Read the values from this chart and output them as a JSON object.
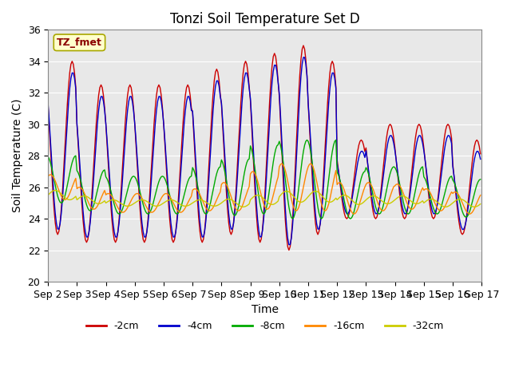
{
  "title": "Tonzi Soil Temperature Set D",
  "xlabel": "Time",
  "ylabel": "Soil Temperature (C)",
  "annotation": "TZ_fmet",
  "ylim": [
    20,
    36
  ],
  "xlim": [
    0,
    360
  ],
  "series_colors": [
    "#cc0000",
    "#0000cc",
    "#00aa00",
    "#ff8800",
    "#cccc00"
  ],
  "series_labels": [
    "-2cm",
    "-4cm",
    "-8cm",
    "-16cm",
    "-32cm"
  ],
  "bg_color": "#e8e8e8",
  "tick_label_fontsize": 9,
  "title_fontsize": 12,
  "xtick_positions": [
    0,
    24,
    48,
    72,
    96,
    120,
    144,
    168,
    192,
    216,
    240,
    264,
    288,
    312,
    336,
    360
  ],
  "xtick_labels": [
    "Sep 2",
    "Sep 3",
    "Sep 4",
    "Sep 5",
    "Sep 6",
    "Sep 7",
    "Sep 8",
    "Sep 9",
    "Sep 10",
    "Sep 11",
    "Sep 12",
    "Sep 13",
    "Sep 14",
    "Sep 15",
    "Sep 16",
    "Sep 17"
  ],
  "ytick_positions": [
    20,
    22,
    24,
    26,
    28,
    30,
    32,
    34,
    36
  ]
}
